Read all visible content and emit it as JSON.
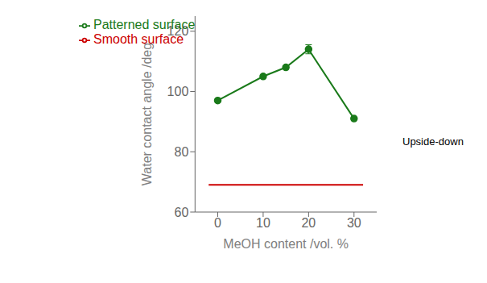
{
  "chart_data": {
    "type": "line",
    "xlabel": "MeOH content /vol. %",
    "ylabel": "Water contact angle /deg",
    "xlim": [
      -5,
      35
    ],
    "ylim": [
      60,
      125
    ],
    "xticks": [
      0,
      10,
      20,
      30
    ],
    "yticks": [
      60,
      80,
      100,
      120
    ],
    "grid": false,
    "legend": "upper left",
    "annotations": [
      "Upside-down"
    ],
    "series": [
      {
        "name": "Patterned surface",
        "color": "#1a7a1a",
        "marker": "o",
        "x": [
          0,
          10,
          15,
          20,
          30
        ],
        "values": [
          97,
          105,
          108,
          114,
          91
        ],
        "errors": [
          null,
          null,
          null,
          1.5,
          null
        ]
      },
      {
        "name": "Smooth surface",
        "color": "#cc0000",
        "x": [
          -2,
          32
        ],
        "values": [
          69,
          69
        ]
      }
    ]
  }
}
